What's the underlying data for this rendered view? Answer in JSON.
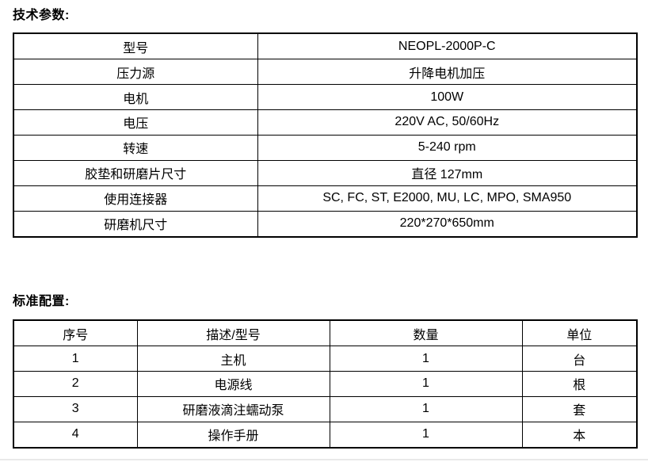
{
  "sections": {
    "tech_title": "技术参数:",
    "config_title": "标准配置:"
  },
  "tech_table": {
    "rows": [
      {
        "label": "型号",
        "value": "NEOPL-2000P-C"
      },
      {
        "label": "压力源",
        "value": "升降电机加压"
      },
      {
        "label": "电机",
        "value": "100W"
      },
      {
        "label": "电压",
        "value": "220V AC, 50/60Hz"
      },
      {
        "label": "转速",
        "value": "5-240 rpm"
      },
      {
        "label": "胶垫和研磨片尺寸",
        "value": "直径 127mm"
      },
      {
        "label": "使用连接器",
        "value": "SC, FC, ST, E2000, MU, LC, MPO, SMA950"
      },
      {
        "label": "研磨机尺寸",
        "value": "220*270*650mm"
      }
    ]
  },
  "config_table": {
    "headers": [
      "序号",
      "描述/型号",
      "数量",
      "单位"
    ],
    "rows": [
      [
        "1",
        "主机",
        "1",
        "台"
      ],
      [
        "2",
        "电源线",
        "1",
        "根"
      ],
      [
        "3",
        "研磨液滴注蠕动泵",
        "1",
        "套"
      ],
      [
        "4",
        "操作手册",
        "1",
        "本"
      ]
    ]
  }
}
